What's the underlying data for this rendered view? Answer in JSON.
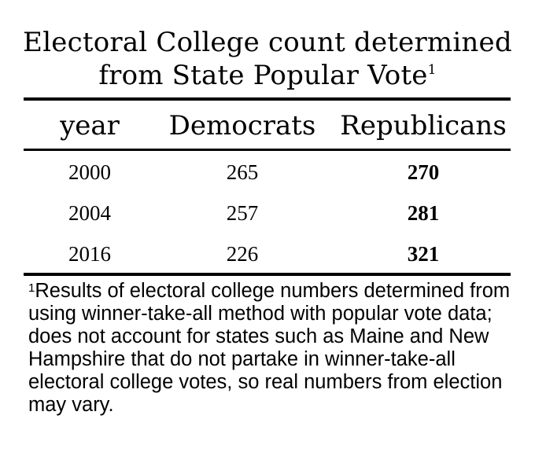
{
  "title": {
    "line1": "Electoral College count determined",
    "line2": "from State Popular Vote",
    "footnote_marker": "1"
  },
  "table": {
    "headers": [
      "year",
      "Democrats",
      "Republicans"
    ],
    "rows": [
      {
        "year": "2000",
        "democrats": "265",
        "republicans": "270"
      },
      {
        "year": "2004",
        "democrats": "257",
        "republicans": "281"
      },
      {
        "year": "2016",
        "democrats": "226",
        "republicans": "321"
      }
    ],
    "bold_column": "republicans"
  },
  "footnote": {
    "marker": "1",
    "text": "Results of electoral college numbers determined from using winner-take-all method with popular vote data; does not account for states such as Maine and New Hampshire that do not partake in winner-take-all electoral college votes, so real numbers from election may vary."
  }
}
